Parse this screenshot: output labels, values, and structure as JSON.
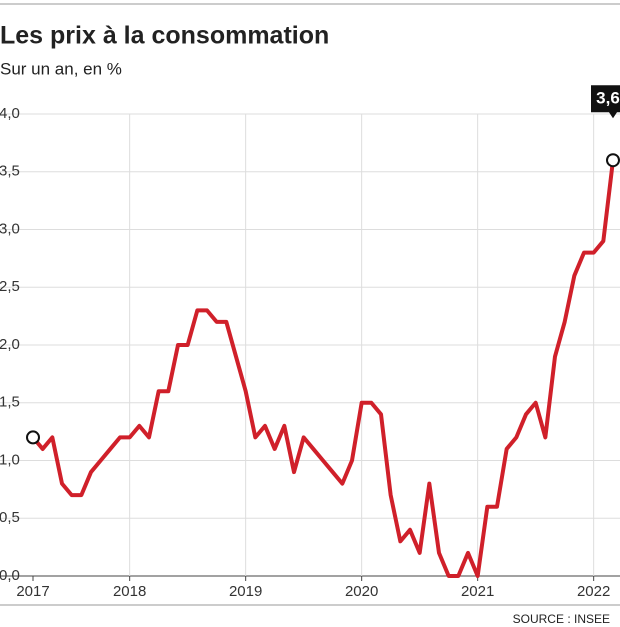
{
  "chart_data": {
    "type": "line",
    "title": "Les prix à la consommation",
    "subtitle": "Sur un an, en %",
    "source": "SOURCE : INSEE",
    "categories": [
      "2017",
      null,
      null,
      null,
      null,
      null,
      null,
      null,
      null,
      null,
      "2018",
      null,
      null,
      null,
      null,
      null,
      null,
      null,
      null,
      null,
      null,
      null,
      "2019",
      null,
      null,
      null,
      null,
      null,
      null,
      null,
      null,
      null,
      null,
      null,
      "2020",
      null,
      null,
      null,
      null,
      null,
      null,
      null,
      null,
      null,
      null,
      null,
      "2021",
      null,
      null,
      null,
      null,
      null,
      null,
      null,
      null,
      null,
      null,
      null,
      "2022",
      null,
      null
    ],
    "series": [
      {
        "name": "Prix à la consommation",
        "color": "#d0202a",
        "values": [
          1.2,
          1.1,
          1.2,
          0.8,
          0.7,
          0.7,
          0.9,
          1.0,
          1.1,
          1.2,
          1.2,
          1.3,
          1.2,
          1.6,
          1.6,
          2.0,
          2.0,
          2.3,
          2.3,
          2.2,
          2.2,
          1.9,
          1.6,
          1.2,
          1.3,
          1.1,
          1.3,
          0.9,
          1.2,
          1.1,
          1.0,
          0.9,
          0.8,
          1.0,
          1.5,
          1.5,
          1.4,
          0.7,
          0.3,
          0.4,
          0.2,
          0.8,
          0.2,
          0.0,
          0.0,
          0.2,
          0.0,
          0.6,
          0.6,
          1.1,
          1.2,
          1.4,
          1.5,
          1.2,
          1.9,
          2.2,
          2.6,
          2.8,
          2.8,
          2.9,
          3.6
        ],
        "value_labels": [
          null,
          null,
          null,
          null,
          null,
          null,
          null,
          null,
          null,
          null,
          null,
          null,
          null,
          null,
          null,
          null,
          null,
          null,
          null,
          null,
          null,
          null,
          null,
          null,
          null,
          null,
          null,
          null,
          null,
          null,
          null,
          null,
          null,
          null,
          null,
          null,
          null,
          null,
          null,
          null,
          null,
          null,
          null,
          null,
          null,
          null,
          null,
          null,
          null,
          null,
          null,
          null,
          null,
          null,
          null,
          null,
          null,
          null,
          null,
          null,
          "3,6"
        ]
      }
    ],
    "ylim": [
      0,
      4
    ],
    "yticks": [
      {
        "value": 0,
        "label": "0,0"
      },
      {
        "value": 0.5,
        "label": "0,5"
      },
      {
        "value": 1,
        "label": "1,0"
      },
      {
        "value": 1.5,
        "label": "1,5"
      },
      {
        "value": 2,
        "label": "2,0"
      },
      {
        "value": 2.5,
        "label": "2,5"
      },
      {
        "value": 3,
        "label": "3,0"
      },
      {
        "value": 3.5,
        "label": "3,5"
      },
      {
        "value": 4,
        "label": "4,0"
      }
    ],
    "grid": true
  }
}
